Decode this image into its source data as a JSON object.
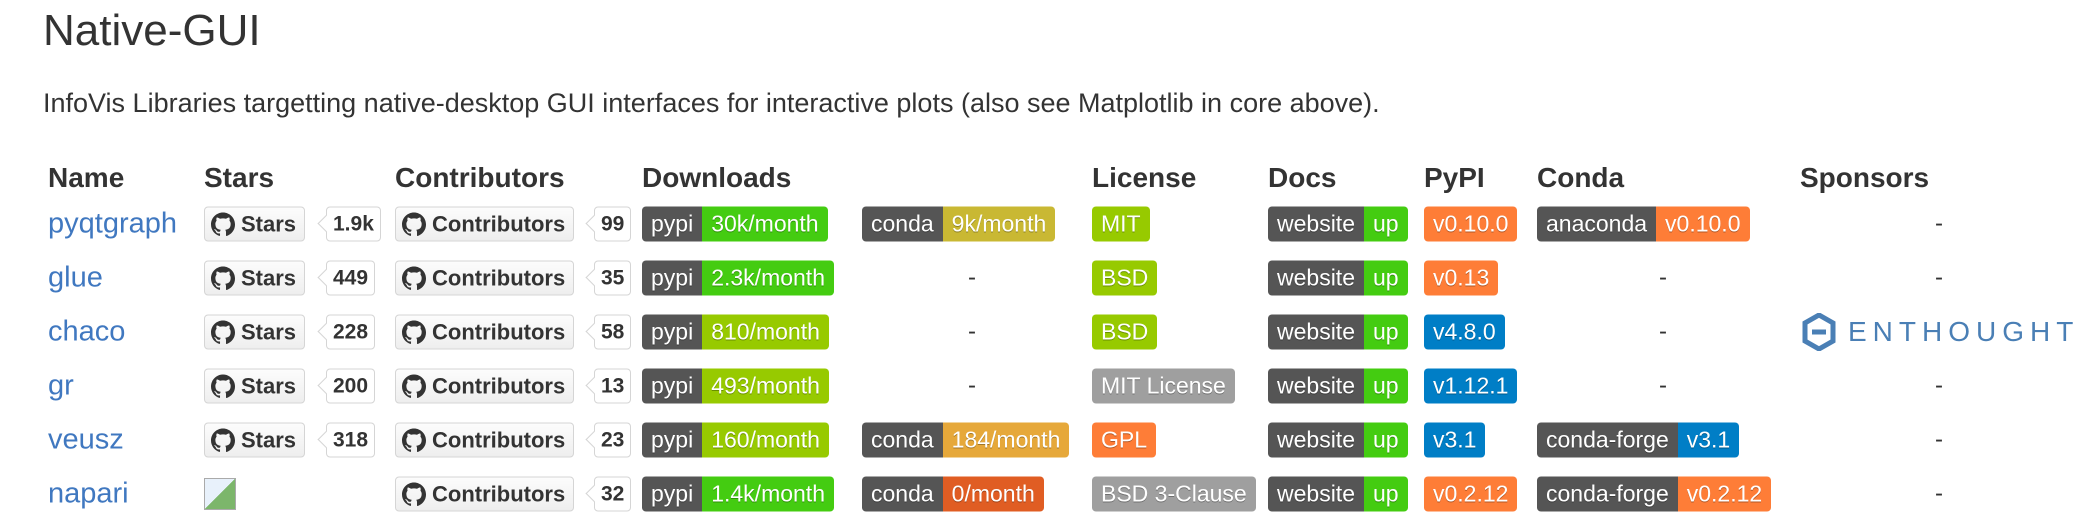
{
  "header": {
    "title": "Native-GUI",
    "description": "InfoVis Libraries targetting native-desktop GUI interfaces for interactive plots (also see Matplotlib in core above)."
  },
  "table": {
    "columns": [
      "Name",
      "Stars",
      "Contributors",
      "Downloads",
      "License",
      "Docs",
      "PyPI",
      "Conda",
      "Sponsors"
    ],
    "rows": [
      {
        "name": "pyqtgraph",
        "stars": {
          "label": "Stars",
          "count": "1.9k"
        },
        "contributors": {
          "label": "Contributors",
          "count": "99"
        },
        "pypi_downloads": {
          "label": "pypi",
          "value": "30k/month",
          "color": "#4c1"
        },
        "conda_downloads": {
          "label": "conda",
          "value": "9k/month",
          "color": "#c9b833"
        },
        "license": {
          "value": "MIT",
          "color": "#97ca00"
        },
        "docs": {
          "label": "website",
          "value": "up",
          "color": "#4c1"
        },
        "pypi": {
          "value": "v0.10.0",
          "color": "#fe7d37"
        },
        "conda": {
          "label": "anaconda",
          "value": "v0.10.0",
          "color": "#fe7d37"
        },
        "sponsors": "-"
      },
      {
        "name": "glue",
        "stars": {
          "label": "Stars",
          "count": "449"
        },
        "contributors": {
          "label": "Contributors",
          "count": "35"
        },
        "pypi_downloads": {
          "label": "pypi",
          "value": "2.3k/month",
          "color": "#4c1"
        },
        "conda_downloads": "-",
        "license": {
          "value": "BSD",
          "color": "#97ca00"
        },
        "docs": {
          "label": "website",
          "value": "up",
          "color": "#4c1"
        },
        "pypi": {
          "value": "v0.13",
          "color": "#fe7d37"
        },
        "conda": "-",
        "sponsors": "-"
      },
      {
        "name": "chaco",
        "stars": {
          "label": "Stars",
          "count": "228"
        },
        "contributors": {
          "label": "Contributors",
          "count": "58"
        },
        "pypi_downloads": {
          "label": "pypi",
          "value": "810/month",
          "color": "#97ca00"
        },
        "conda_downloads": "-",
        "license": {
          "value": "BSD",
          "color": "#97ca00"
        },
        "docs": {
          "label": "website",
          "value": "up",
          "color": "#4c1"
        },
        "pypi": {
          "value": "v4.8.0",
          "color": "#007ec6"
        },
        "conda": "-",
        "sponsors": "ENTHOUGHT"
      },
      {
        "name": "gr",
        "stars": {
          "label": "Stars",
          "count": "200"
        },
        "contributors": {
          "label": "Contributors",
          "count": "13"
        },
        "pypi_downloads": {
          "label": "pypi",
          "value": "493/month",
          "color": "#97ca00"
        },
        "conda_downloads": "-",
        "license": {
          "value": "MIT License",
          "color": "#9f9f9f"
        },
        "docs": {
          "label": "website",
          "value": "up",
          "color": "#4c1"
        },
        "pypi": {
          "value": "v1.12.1",
          "color": "#007ec6"
        },
        "conda": "-",
        "sponsors": "-"
      },
      {
        "name": "veusz",
        "stars": {
          "label": "Stars",
          "count": "318"
        },
        "contributors": {
          "label": "Contributors",
          "count": "23"
        },
        "pypi_downloads": {
          "label": "pypi",
          "value": "160/month",
          "color": "#97ca00"
        },
        "conda_downloads": {
          "label": "conda",
          "value": "184/month",
          "color": "#e6a83a"
        },
        "license": {
          "value": "GPL",
          "color": "#fe7d37"
        },
        "docs": {
          "label": "website",
          "value": "up",
          "color": "#4c1"
        },
        "pypi": {
          "value": "v3.1",
          "color": "#007ec6"
        },
        "conda": {
          "label": "conda-forge",
          "value": "v3.1",
          "color": "#007ec6"
        },
        "sponsors": "-"
      },
      {
        "name": "napari",
        "stars": null,
        "contributors": {
          "label": "Contributors",
          "count": "32"
        },
        "pypi_downloads": {
          "label": "pypi",
          "value": "1.4k/month",
          "color": "#4c1"
        },
        "conda_downloads": {
          "label": "conda",
          "value": "0/month",
          "color": "#e05d23"
        },
        "license": {
          "value": "BSD 3-Clause",
          "color": "#9f9f9f"
        },
        "docs": {
          "label": "website",
          "value": "up",
          "color": "#4c1"
        },
        "pypi": {
          "value": "v0.2.12",
          "color": "#fe7d37"
        },
        "conda": {
          "label": "conda-forge",
          "value": "v0.2.12",
          "color": "#fe7d37"
        },
        "sponsors": "-"
      }
    ]
  }
}
